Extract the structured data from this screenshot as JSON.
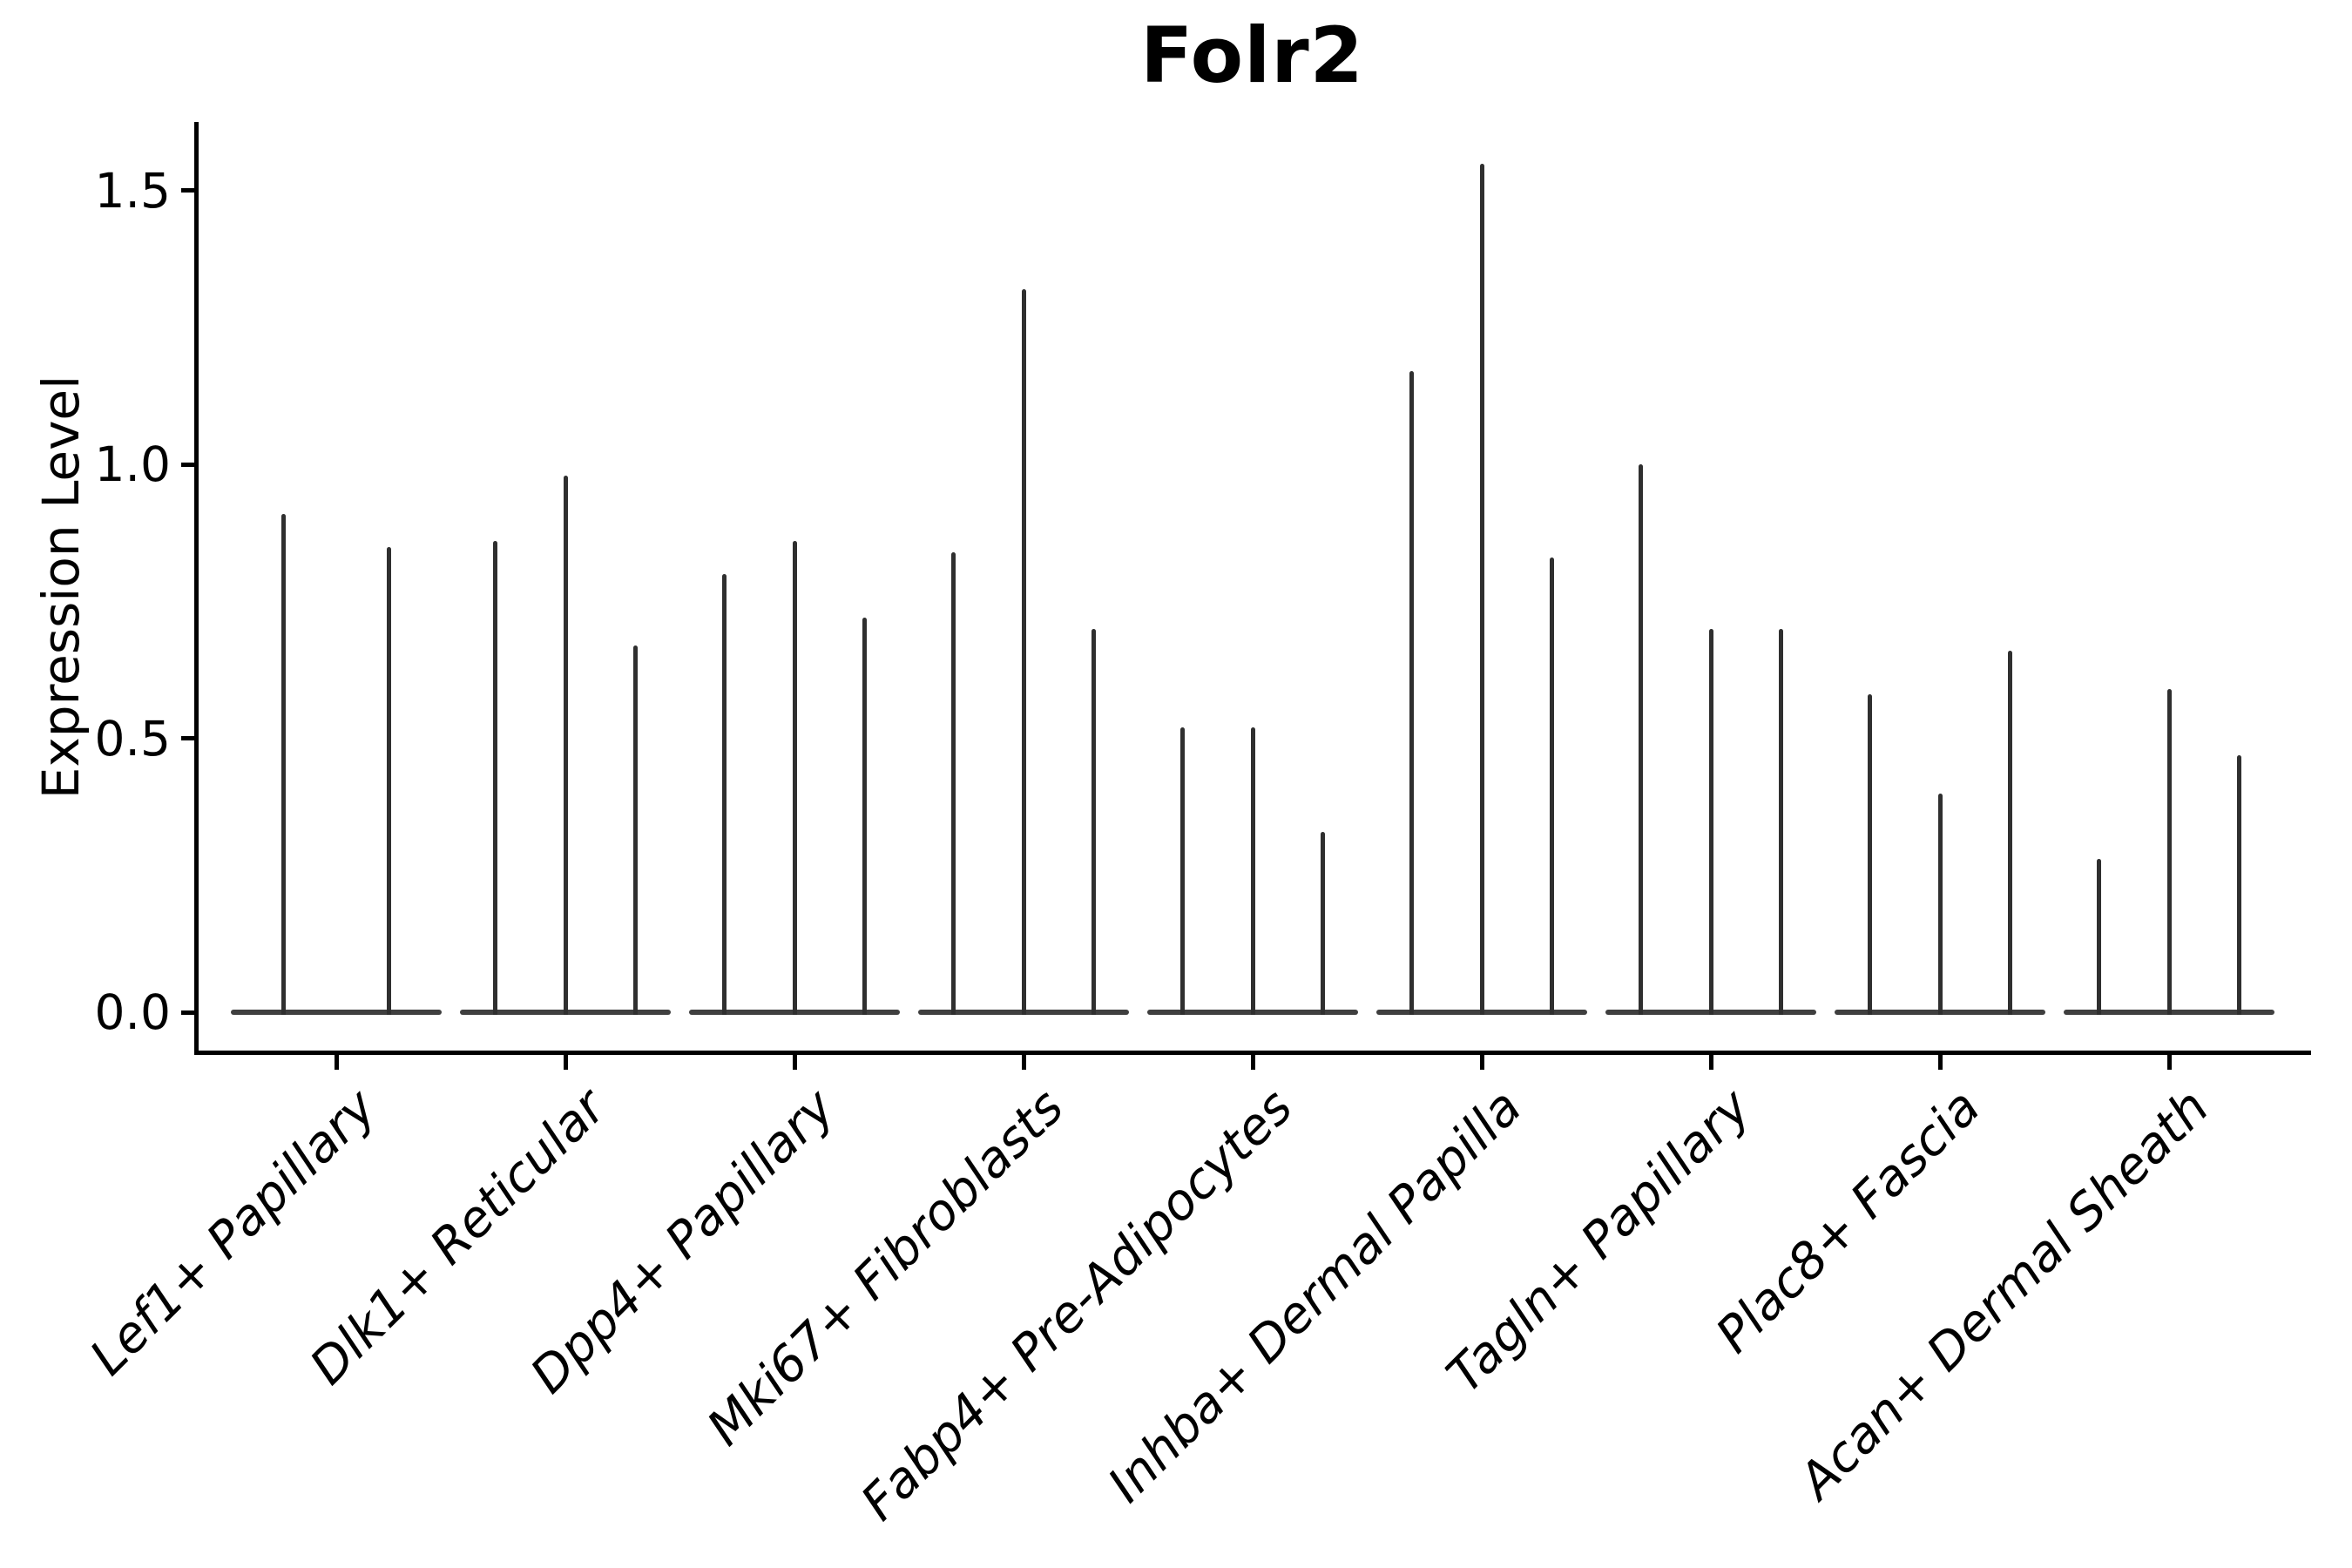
{
  "chart_data": {
    "type": "violin",
    "title": "Folr2",
    "ylabel": "Expression Level",
    "xlabel": "",
    "ylim": [
      -0.07,
      1.63
    ],
    "grid": false,
    "legend_position": "none",
    "yticks": [
      {
        "label": "0.0",
        "value": 0.0
      },
      {
        "label": "0.5",
        "value": 0.5
      },
      {
        "label": "1.0",
        "value": 1.0
      },
      {
        "label": "1.5",
        "value": 1.5
      }
    ],
    "categories": [
      "Lef1+ Papillary",
      "Dlk1+ Reticular",
      "Dpp4+ Papillary",
      "Mki67+ Fibroblasts",
      "Fabp4+ Pre-Adipocytes",
      "Inhba+ Dermal Papilla",
      "Tagln+ Papillary",
      "Plac8+ Fascia",
      "Acan+ Dermal Sheath"
    ],
    "groups": [
      {
        "label": "Lef1+ Papillary",
        "violin_peak_values": [
          0.91,
          0.85
        ]
      },
      {
        "label": "Dlk1+ Reticular",
        "violin_peak_values": [
          0.86,
          0.98,
          0.67
        ]
      },
      {
        "label": "Dpp4+ Papillary",
        "violin_peak_values": [
          0.8,
          0.86,
          0.72
        ]
      },
      {
        "label": "Mki67+ Fibroblasts",
        "violin_peak_values": [
          0.84,
          1.32,
          0.7
        ]
      },
      {
        "label": "Fabp4+ Pre-Adipocytes",
        "violin_peak_values": [
          0.52,
          0.52,
          0.33
        ]
      },
      {
        "label": "Inhba+ Dermal Papilla",
        "violin_peak_values": [
          1.17,
          1.55,
          0.83
        ]
      },
      {
        "label": "Tagln+ Papillary",
        "violin_peak_values": [
          1.0,
          0.7,
          0.7
        ]
      },
      {
        "label": "Plac8+ Fascia",
        "violin_peak_values": [
          0.58,
          0.4,
          0.66
        ]
      },
      {
        "label": "Acan+ Dermal Sheath",
        "violin_peak_values": [
          0.28,
          0.59,
          0.47
        ]
      }
    ],
    "style": {
      "violin_color": "#2f2f2f",
      "baseline_color": "#3f3f3f",
      "axis_color": "#000000",
      "background_color": "#ffffff",
      "title_color": "#000000"
    }
  }
}
